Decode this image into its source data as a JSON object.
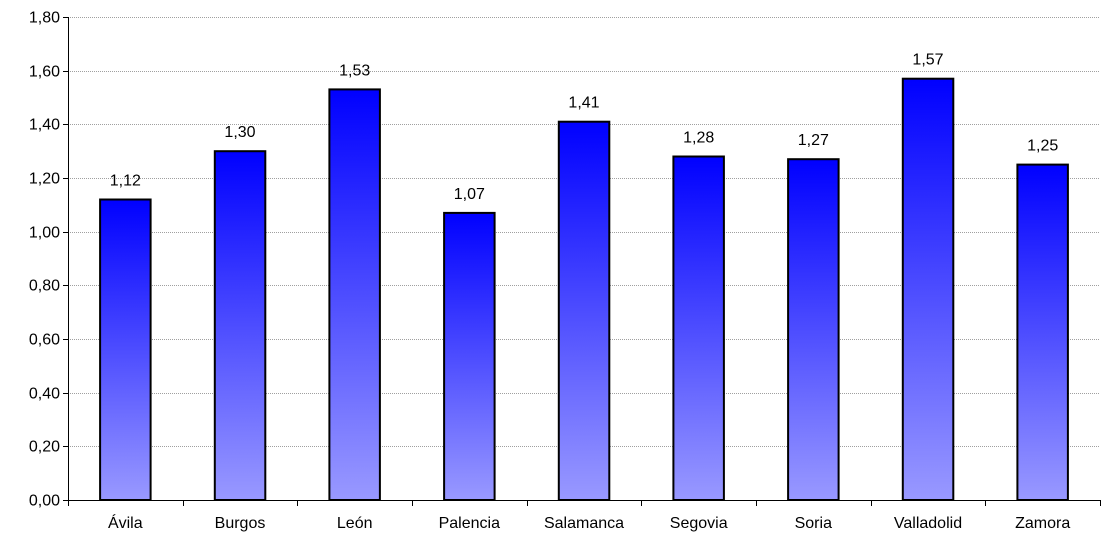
{
  "chart_data": {
    "type": "bar",
    "categories": [
      "Ávila",
      "Burgos",
      "León",
      "Palencia",
      "Salamanca",
      "Segovia",
      "Soria",
      "Valladolid",
      "Zamora"
    ],
    "values": [
      1.12,
      1.3,
      1.53,
      1.07,
      1.41,
      1.28,
      1.27,
      1.57,
      1.25
    ],
    "value_labels": [
      "1,12",
      "1,30",
      "1,53",
      "1,07",
      "1,41",
      "1,28",
      "1,27",
      "1,57",
      "1,25"
    ],
    "ylim": [
      0,
      1.8
    ],
    "yticks": [
      0,
      0.2,
      0.4,
      0.6,
      0.8,
      1.0,
      1.2,
      1.4,
      1.6,
      1.8
    ],
    "ytick_labels": [
      "0,00",
      "0,20",
      "0,40",
      "0,60",
      "0,80",
      "1,00",
      "1,20",
      "1,40",
      "1,60",
      "1,80"
    ],
    "title": "",
    "xlabel": "",
    "ylabel": "",
    "grid": true,
    "legend": "none",
    "colors": {
      "bar_top": "#0000ff",
      "bar_bottom": "#9999ff",
      "bar_stroke": "#000000",
      "grid": "#a0a0a0",
      "axis": "#000000"
    }
  }
}
